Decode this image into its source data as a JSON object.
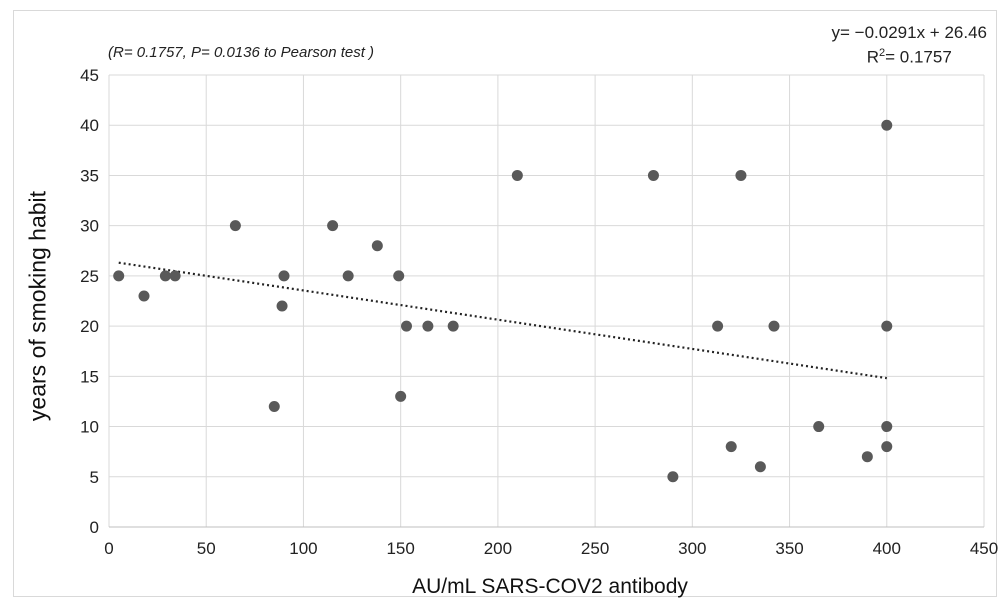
{
  "chart_data": {
    "type": "scatter",
    "title": "",
    "xlabel": "AU/mL SARS-COV2 antibody",
    "ylabel": "years of smoking habit",
    "xlim": [
      0,
      450
    ],
    "ylim": [
      0,
      45
    ],
    "xticks": [
      "0",
      "50",
      "100",
      "150",
      "200",
      "250",
      "300",
      "350",
      "400",
      "450"
    ],
    "yticks": [
      "0",
      "5",
      "10",
      "15",
      "20",
      "25",
      "30",
      "35",
      "40",
      "45"
    ],
    "grid": true,
    "marker_color": "#595959",
    "annotation": {
      "open": "(",
      "r_symbol": "R",
      "r_text": "= 0.1757, ",
      "p_symbol": "P",
      "p_text": "= 0.0136 to Pearson test",
      "close": " )"
    },
    "trendline": {
      "style": "dotted",
      "color": "#222222",
      "slope": -0.0291,
      "intercept": 26.46,
      "x_range": [
        5,
        400
      ],
      "equation_label": "y= −0.0291x + 26.46",
      "r2_prefix": "R",
      "r2_sup": "2",
      "r2_value": "= 0.1757"
    },
    "points": [
      {
        "x": 5,
        "y": 25
      },
      {
        "x": 18,
        "y": 23
      },
      {
        "x": 29,
        "y": 25
      },
      {
        "x": 34,
        "y": 25
      },
      {
        "x": 65,
        "y": 30
      },
      {
        "x": 85,
        "y": 12
      },
      {
        "x": 89,
        "y": 22
      },
      {
        "x": 90,
        "y": 25
      },
      {
        "x": 115,
        "y": 30
      },
      {
        "x": 123,
        "y": 25
      },
      {
        "x": 138,
        "y": 28
      },
      {
        "x": 149,
        "y": 25
      },
      {
        "x": 150,
        "y": 13
      },
      {
        "x": 153,
        "y": 20
      },
      {
        "x": 164,
        "y": 20
      },
      {
        "x": 177,
        "y": 20
      },
      {
        "x": 210,
        "y": 35
      },
      {
        "x": 280,
        "y": 35
      },
      {
        "x": 290,
        "y": 5
      },
      {
        "x": 313,
        "y": 20
      },
      {
        "x": 320,
        "y": 8
      },
      {
        "x": 325,
        "y": 35
      },
      {
        "x": 335,
        "y": 6
      },
      {
        "x": 342,
        "y": 20
      },
      {
        "x": 365,
        "y": 10
      },
      {
        "x": 390,
        "y": 7
      },
      {
        "x": 400,
        "y": 40
      },
      {
        "x": 400,
        "y": 20
      },
      {
        "x": 400,
        "y": 10
      },
      {
        "x": 400,
        "y": 8
      }
    ]
  }
}
